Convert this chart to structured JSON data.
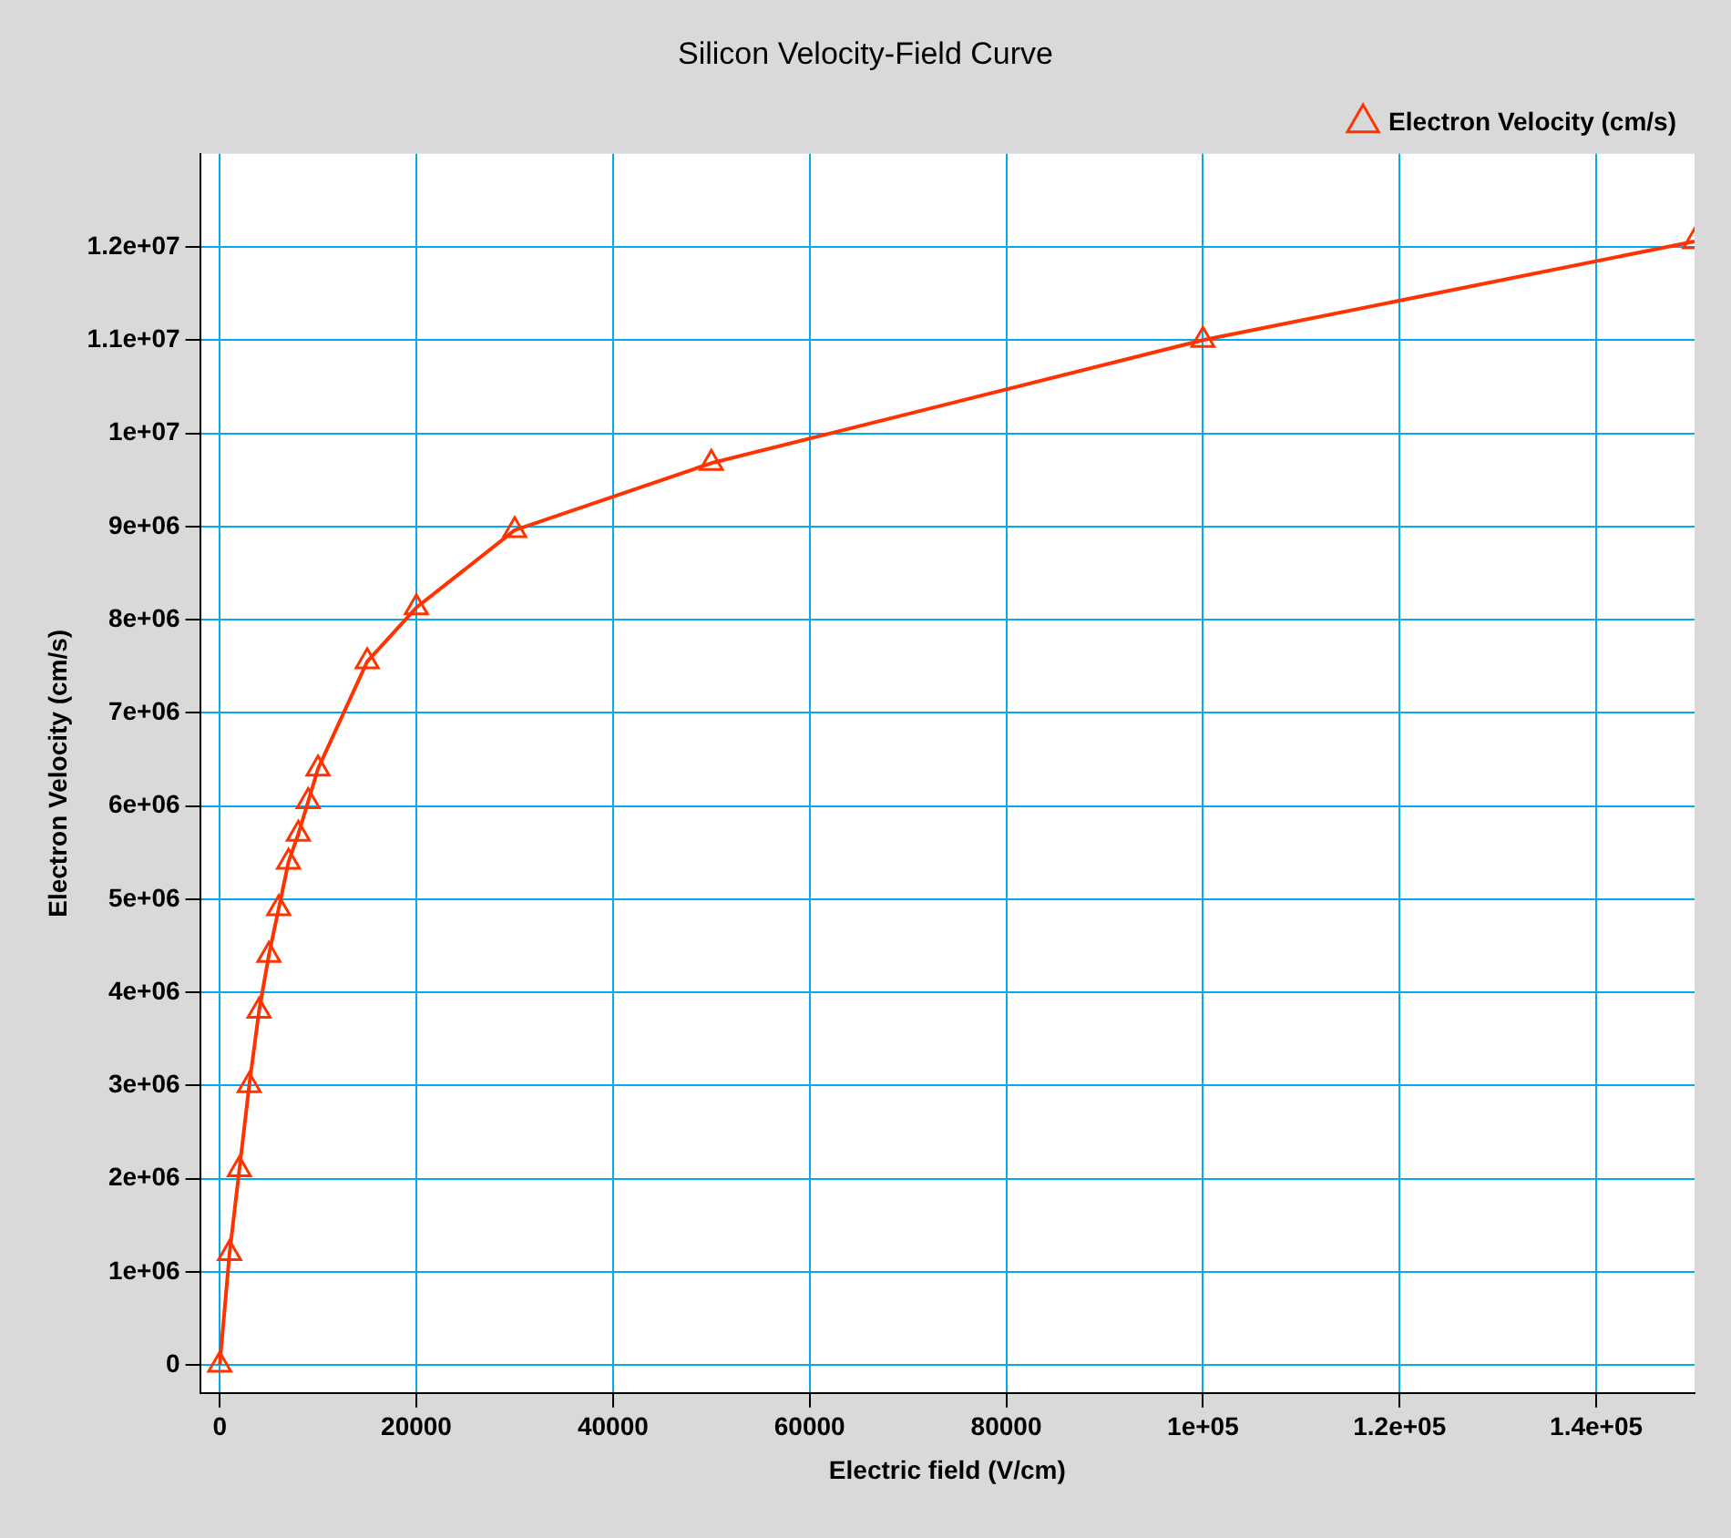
{
  "chart_data": {
    "type": "line",
    "title": "Silicon Velocity-Field Curve",
    "xlabel": "Electric field (V/cm)",
    "ylabel": "Electron Velocity (cm/s)",
    "x": [
      0,
      1000,
      2000,
      3000,
      4000,
      5000,
      6000,
      7000,
      8000,
      9000,
      10000,
      15000,
      20000,
      30000,
      50000,
      100000,
      150000
    ],
    "series": [
      {
        "name": "Electron Velocity (cm/s)",
        "color": "#ff3300",
        "values": [
          0,
          1200000,
          2100000,
          3000000,
          3800000,
          4400000,
          4900000,
          5400000,
          5700000,
          6050000,
          6400000,
          7550000,
          8130000,
          8960000,
          9680000,
          11000000,
          12060000
        ]
      }
    ],
    "xlim": [
      -2000,
      150000
    ],
    "ylim": [
      -300000,
      13000000
    ],
    "xticks": [
      0,
      20000,
      40000,
      60000,
      80000,
      {
        "value": 100000,
        "label": "1e+05"
      },
      {
        "value": 120000,
        "label": "1.2e+05"
      },
      {
        "value": 140000,
        "label": "1.4e+05"
      }
    ],
    "yticks": [
      0,
      {
        "value": 1000000,
        "label": "1e+06"
      },
      {
        "value": 2000000,
        "label": "2e+06"
      },
      {
        "value": 3000000,
        "label": "3e+06"
      },
      {
        "value": 4000000,
        "label": "4e+06"
      },
      {
        "value": 5000000,
        "label": "5e+06"
      },
      {
        "value": 6000000,
        "label": "6e+06"
      },
      {
        "value": 7000000,
        "label": "7e+06"
      },
      {
        "value": 8000000,
        "label": "8e+06"
      },
      {
        "value": 9000000,
        "label": "9e+06"
      },
      {
        "value": 10000000,
        "label": "1e+07"
      },
      {
        "value": 11000000,
        "label": "1.1e+07"
      },
      {
        "value": 12000000,
        "label": "1.2e+07"
      }
    ],
    "grid": true,
    "legend": "top right",
    "marker": "triangle",
    "line_style": "solid"
  }
}
